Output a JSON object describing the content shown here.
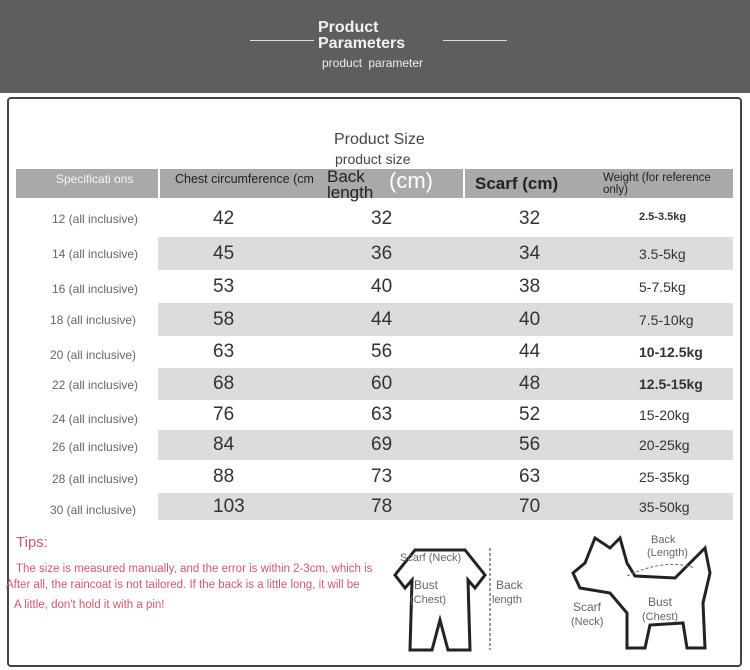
{
  "header": {
    "title_line1": "Product",
    "title_line2": "Parameters",
    "subtitle": "product parameter"
  },
  "title": "Product Size",
  "subtitle": "product size",
  "columns": [
    "Specificati ons",
    "Chest circumference (cm",
    "Back length",
    "(cm)",
    "Scarf (cm)",
    "Weight (for reference only)"
  ],
  "rows": [
    {
      "spec": "12 (all inclusive)",
      "chest": "42",
      "back": "32",
      "scarf": "32",
      "weight": "2.5-3.5kg"
    },
    {
      "spec": "14 (all inclusive)",
      "chest": "45",
      "back": "36",
      "scarf": "34",
      "weight": "3.5-5kg"
    },
    {
      "spec": "16 (all inclusive)",
      "chest": "53",
      "back": "40",
      "scarf": "38",
      "weight": "5-7.5kg"
    },
    {
      "spec": "18 (all inclusive)",
      "chest": "58",
      "back": "44",
      "scarf": "40",
      "weight": "7.5-10kg"
    },
    {
      "spec": "20 (all inclusive)",
      "chest": "63",
      "back": "56",
      "scarf": "44",
      "weight": "10-12.5kg"
    },
    {
      "spec": "22 (all inclusive)",
      "chest": "68",
      "back": "60",
      "scarf": "48",
      "weight": "12.5-15kg"
    },
    {
      "spec": "24 (all inclusive)",
      "chest": "76",
      "back": "63",
      "scarf": "52",
      "weight": "15-20kg"
    },
    {
      "spec": "26 (all inclusive)",
      "chest": "84",
      "back": "69",
      "scarf": "56",
      "weight": "20-25kg"
    },
    {
      "spec": "28 (all inclusive)",
      "chest": "88",
      "back": "73",
      "scarf": "63",
      "weight": "25-35kg"
    },
    {
      "spec": "30 (all inclusive)",
      "chest": "103",
      "back": "78",
      "scarf": "70",
      "weight": "35-50kg"
    }
  ],
  "tips": {
    "label": "Tips:",
    "line1": "The size is measured manually, and the error is within 2-3cm, which is",
    "line2": "After all, the raincoat is not tailored. If the back is a little long, it will be",
    "line3": "A little, don't hold it with a pin!"
  },
  "diagram1": {
    "scarf": "Scarf (Neck)",
    "bust": "Bust",
    "chest": "(Chest)",
    "back": "Back",
    "length": "length"
  },
  "diagram2": {
    "back": "Back",
    "length": "(Length)",
    "scarf": "Scarf",
    "neck": "(Neck)",
    "bust": "Bust",
    "chest": "(Chest)"
  }
}
